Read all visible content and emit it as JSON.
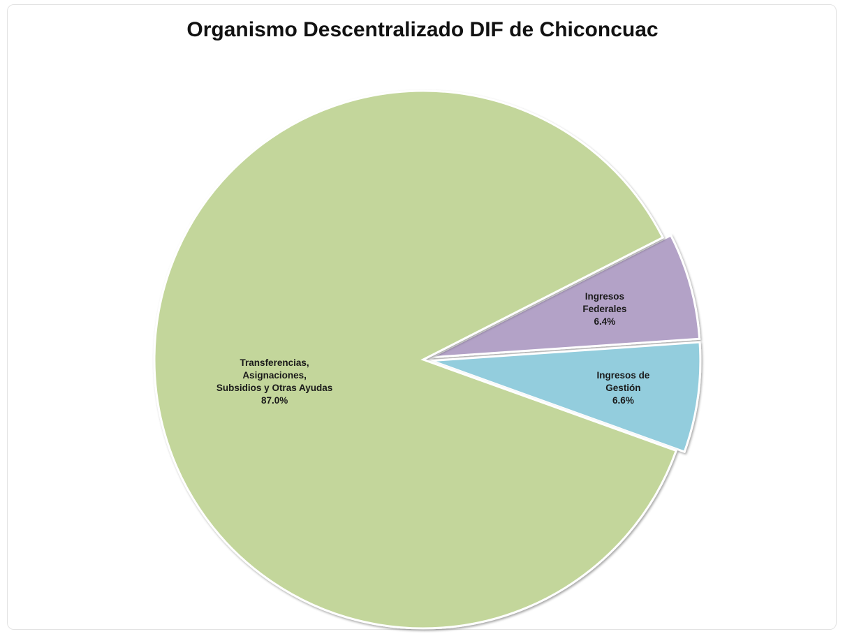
{
  "chart_data": {
    "type": "pie",
    "title": "Organismo Descentralizado DIF de Chiconcuac",
    "slices": [
      {
        "label_lines": [
          "Ingresos",
          "Federales"
        ],
        "value_label": "6.4%",
        "value": 6.4,
        "color": "#b3a2c7",
        "exploded": true
      },
      {
        "label_lines": [
          "Ingresos de",
          "Gestión"
        ],
        "value_label": "6.6%",
        "value": 6.6,
        "color": "#93cddd",
        "exploded": true
      },
      {
        "label_lines": [
          "Transferencias,",
          "Asignaciones,",
          "Subsidios y Otras Ayudas"
        ],
        "value_label": "87.0%",
        "value": 87.0,
        "color": "#c3d69b",
        "exploded": false
      }
    ]
  }
}
